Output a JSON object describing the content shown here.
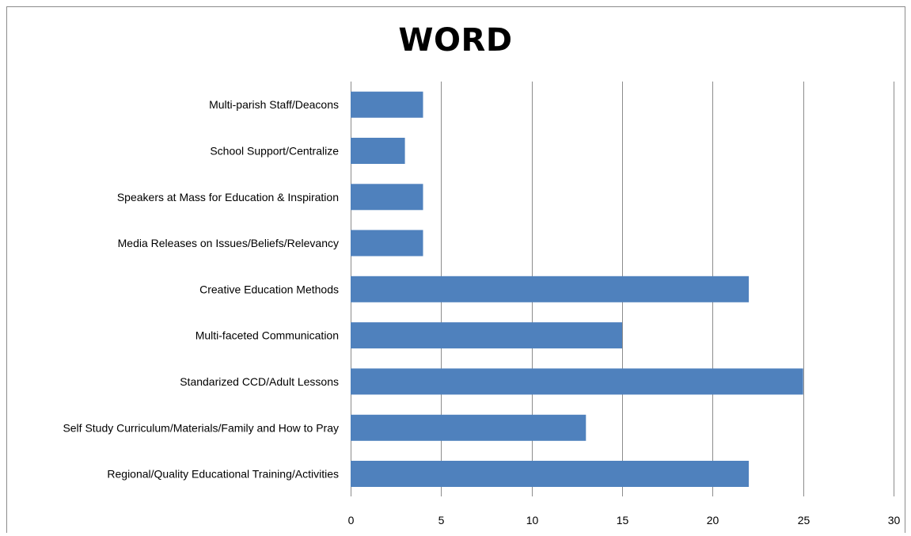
{
  "chart_data": {
    "type": "bar",
    "orientation": "horizontal",
    "title": "WORD",
    "xlabel": "",
    "ylabel": "",
    "categories": [
      "Multi-parish Staff/Deacons",
      "School Support/Centralize",
      "Speakers at Mass for Education & Inspiration",
      "Media Releases on Issues/Beliefs/Relevancy",
      "Creative Education Methods",
      "Multi-faceted Communication",
      "Standarized CCD/Adult Lessons",
      "Self Study Curriculum/Materials/Family and How to Pray",
      "Regional/Quality Educational Training/Activities"
    ],
    "values": [
      4,
      3,
      4,
      4,
      22,
      15,
      25,
      13,
      22
    ],
    "xlim": [
      0,
      30
    ],
    "xticks": [
      0,
      5,
      10,
      15,
      20,
      25,
      30
    ],
    "xtick_labels": [
      "0",
      "5",
      "10",
      "15",
      "20",
      "25",
      "30"
    ],
    "grid": "vertical",
    "legend": "none",
    "bar_color": "#4f81bd",
    "grid_color": "#8c8c8c"
  }
}
